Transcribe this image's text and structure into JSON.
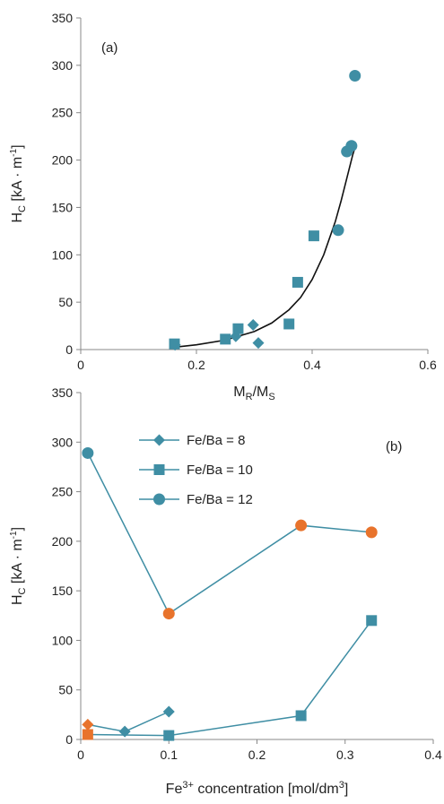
{
  "colors": {
    "teal": "#3F8EA4",
    "orange": "#E8732C",
    "fit": "#111111",
    "axis": "#888888"
  },
  "chart_data": [
    {
      "type": "scatter",
      "panel_label": "(a)",
      "xlabel_main": "M",
      "xlabel_sub1": "R",
      "xlabel_mid": "/M",
      "xlabel_sub2": "S",
      "ylabel_main": "H",
      "ylabel_sub": "C",
      "ylabel_unit": " [kA · m",
      "ylabel_sup": "-1",
      "ylabel_end": "]",
      "xlim": [
        0,
        0.6
      ],
      "ylim": [
        0,
        350
      ],
      "xticks": [
        0,
        0.2,
        0.4,
        0.6
      ],
      "xtick_labels": [
        "0",
        "0.2",
        "0.4",
        "0.6"
      ],
      "yticks": [
        0,
        50,
        100,
        150,
        200,
        250,
        300,
        350
      ],
      "ytick_labels": [
        "0",
        "50",
        "100",
        "150",
        "200",
        "250",
        "300",
        "350"
      ],
      "series": [
        {
          "marker": "diamond",
          "x": [
            0.163,
            0.268,
            0.298,
            0.307
          ],
          "y": [
            5,
            14,
            26,
            7
          ]
        },
        {
          "marker": "square",
          "x": [
            0.162,
            0.25,
            0.272,
            0.36,
            0.375,
            0.403
          ],
          "y": [
            6,
            11,
            22,
            27,
            71,
            120
          ]
        },
        {
          "marker": "circle",
          "x": [
            0.445,
            0.46,
            0.468,
            0.474
          ],
          "y": [
            126,
            209,
            215,
            289
          ]
        }
      ],
      "fit_curve": {
        "x": [
          0.17,
          0.2,
          0.25,
          0.3,
          0.33,
          0.36,
          0.38,
          0.4,
          0.42,
          0.44,
          0.45,
          0.46,
          0.47,
          0.475
        ],
        "y": [
          3,
          5,
          10,
          19,
          28,
          42,
          55,
          74,
          100,
          135,
          157,
          181,
          205,
          215
        ]
      }
    },
    {
      "type": "line",
      "panel_label": "(b)",
      "xlabel_pre": "Fe",
      "xlabel_sup": "3+",
      "xlabel_post": " concentration [mol/dm",
      "xlabel_sup2": "3",
      "xlabel_end": "]",
      "ylabel_main": "H",
      "ylabel_sub": "C",
      "ylabel_unit": " [kA · m",
      "ylabel_sup": "-1",
      "ylabel_end": "]",
      "xlim": [
        0,
        0.4
      ],
      "ylim": [
        0,
        350
      ],
      "xticks": [
        0,
        0.1,
        0.2,
        0.3,
        0.4
      ],
      "xtick_labels": [
        "0",
        "0.1",
        "0.2",
        "0.3",
        "0.4"
      ],
      "yticks": [
        0,
        50,
        100,
        150,
        200,
        250,
        300,
        350
      ],
      "ytick_labels": [
        "0",
        "50",
        "100",
        "150",
        "200",
        "250",
        "300",
        "350"
      ],
      "legend": [
        "Fe/Ba = 8",
        "Fe/Ba = 10",
        "Fe/Ba = 12"
      ],
      "series": [
        {
          "name": "Fe/Ba = 8",
          "marker": "diamond",
          "x": [
            0.008,
            0.05,
            0.1
          ],
          "y": [
            15,
            8,
            28
          ],
          "point_colors": [
            "orange",
            "teal",
            "teal"
          ]
        },
        {
          "name": "Fe/Ba = 10",
          "marker": "square",
          "x": [
            0.008,
            0.1,
            0.25,
            0.33
          ],
          "y": [
            5,
            4,
            24,
            120
          ],
          "point_colors": [
            "orange",
            "teal",
            "teal",
            "teal"
          ]
        },
        {
          "name": "Fe/Ba = 12",
          "marker": "circle",
          "x": [
            0.008,
            0.1,
            0.25,
            0.33
          ],
          "y": [
            289,
            127,
            216,
            209
          ],
          "point_colors": [
            "teal",
            "orange",
            "orange",
            "orange"
          ]
        }
      ]
    }
  ]
}
